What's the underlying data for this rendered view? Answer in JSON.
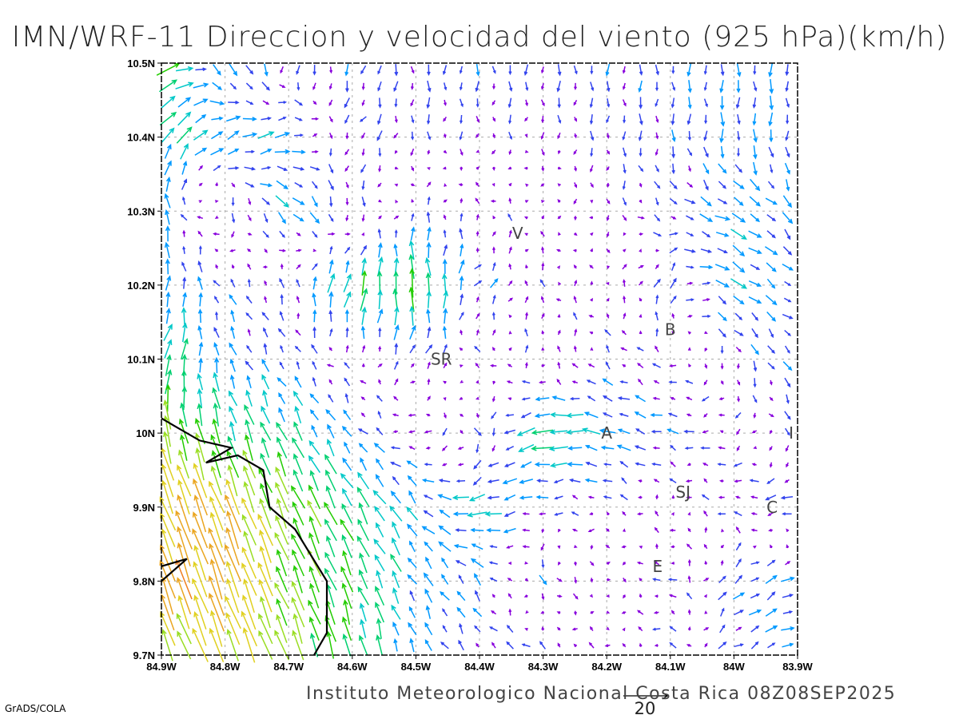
{
  "title": "IMN/WRF-11 Direccion y velocidad del viento (925 hPa)(km/h)",
  "footer": "Instituto Meteorologico Nacional Costa Rica 08Z08SEP2025",
  "credit": "GrADS/COLA",
  "reference_vector": {
    "label": "20",
    "speed_kmh": 20
  },
  "axes": {
    "lon_labels": [
      "84.9W",
      "84.8W",
      "84.7W",
      "84.6W",
      "84.5W",
      "84.4W",
      "84.3W",
      "84.2W",
      "84.1W",
      "84W",
      "83.9W"
    ],
    "lat_labels": [
      "10.5N",
      "10.4N",
      "10.3N",
      "10.2N",
      "10.1N",
      "10N",
      "9.9N",
      "9.8N",
      "9.7N"
    ],
    "lon_range": [
      -84.9,
      -83.9
    ],
    "lat_range": [
      9.7,
      10.5
    ]
  },
  "cities": [
    {
      "label": "V",
      "lon": -84.34,
      "lat": 10.27
    },
    {
      "label": "SR",
      "lon": -84.46,
      "lat": 10.1
    },
    {
      "label": "B",
      "lon": -84.1,
      "lat": 10.14
    },
    {
      "label": "A",
      "lon": -84.2,
      "lat": 10.0
    },
    {
      "label": "I",
      "lon": -83.91,
      "lat": 10.0
    },
    {
      "label": "SJ",
      "lon": -84.08,
      "lat": 9.92
    },
    {
      "label": "C",
      "lon": -83.94,
      "lat": 9.9
    },
    {
      "label": "E",
      "lon": -84.12,
      "lat": 9.82
    }
  ],
  "coastline": [
    [
      [
        -84.9,
        10.02
      ],
      [
        -84.88,
        10.01
      ],
      [
        -84.84,
        9.99
      ],
      [
        -84.79,
        9.98
      ],
      [
        -84.83,
        9.96
      ],
      [
        -84.78,
        9.97
      ],
      [
        -84.74,
        9.95
      ],
      [
        -84.73,
        9.9
      ],
      [
        -84.69,
        9.87
      ],
      [
        -84.64,
        9.8
      ],
      [
        -84.64,
        9.73
      ],
      [
        -84.66,
        9.7
      ]
    ],
    [
      [
        -84.9,
        9.82
      ],
      [
        -84.86,
        9.83
      ],
      [
        -84.9,
        9.8
      ]
    ]
  ],
  "wind_field": {
    "units": "km/h",
    "lons": [
      -84.9,
      -84.8,
      -84.7,
      -84.6,
      -84.5,
      -84.4,
      -84.3,
      -84.2,
      -84.1,
      -84.0,
      -83.9
    ],
    "lats": [
      10.5,
      10.4,
      10.3,
      10.2,
      10.1,
      10.0,
      9.9,
      9.8,
      9.7
    ],
    "u": [
      [
        10,
        3,
        -1,
        -1,
        0,
        0,
        0,
        0,
        0,
        0,
        0
      ],
      [
        5,
        6,
        6,
        -2,
        0,
        0,
        0,
        0,
        0,
        0,
        0
      ],
      [
        -2,
        -1,
        5,
        0,
        1,
        -1,
        0,
        0,
        3,
        6,
        3
      ],
      [
        1,
        -2,
        -1,
        3,
        -2,
        3,
        -1,
        0,
        2,
        6,
        3
      ],
      [
        4,
        -2,
        -2,
        -1,
        3,
        -2,
        1,
        -2,
        -2,
        1,
        3
      ],
      [
        -3,
        -3,
        -4,
        -3,
        -3,
        2,
        -10,
        -6,
        -4,
        -2,
        2
      ],
      [
        -6,
        -6,
        -5,
        -5,
        -4,
        -8,
        -3,
        -2,
        0,
        -3,
        -5
      ],
      [
        -6,
        -6,
        -5,
        -4,
        -3,
        -3,
        2,
        1,
        -3,
        4,
        5
      ],
      [
        -5,
        -6,
        -5,
        -2,
        -2,
        -2,
        -3,
        -1,
        -2,
        3,
        5
      ]
    ],
    "v": [
      [
        6,
        -6,
        -4,
        -4,
        -4,
        -4,
        -4,
        -4,
        -4,
        -5,
        -5
      ],
      [
        8,
        3,
        2,
        -3,
        -3,
        -2,
        -2,
        -3,
        -4,
        -5,
        -5
      ],
      [
        6,
        -3,
        -5,
        -4,
        3,
        2,
        1,
        -2,
        -2,
        -3,
        -4
      ],
      [
        7,
        3,
        3,
        10,
        12,
        3,
        2,
        1,
        4,
        -4,
        -2
      ],
      [
        10,
        5,
        3,
        1,
        3,
        1,
        2,
        2,
        1,
        -3,
        -4
      ],
      [
        13,
        10,
        8,
        4,
        -1,
        -3,
        -2,
        2,
        1,
        -1,
        -2
      ],
      [
        16,
        16,
        12,
        9,
        5,
        -2,
        0,
        1,
        1,
        1,
        -2
      ],
      [
        17,
        17,
        12,
        10,
        5,
        4,
        -3,
        -1,
        1,
        3,
        2
      ],
      [
        12,
        15,
        13,
        10,
        5,
        2,
        3,
        1,
        1,
        2,
        2
      ]
    ]
  },
  "speed_colors": [
    {
      "max": 3,
      "color": "#8800dd"
    },
    {
      "max": 5,
      "color": "#3344ee"
    },
    {
      "max": 7,
      "color": "#0099ff"
    },
    {
      "max": 9,
      "color": "#00c8c8"
    },
    {
      "max": 11,
      "color": "#00d070"
    },
    {
      "max": 13,
      "color": "#22cc00"
    },
    {
      "max": 15,
      "color": "#99dd22"
    },
    {
      "max": 17,
      "color": "#e0d020"
    },
    {
      "max": 19,
      "color": "#eaa520"
    },
    {
      "max": 21,
      "color": "#f08020"
    },
    {
      "max": 999,
      "color": "#f03030"
    }
  ]
}
